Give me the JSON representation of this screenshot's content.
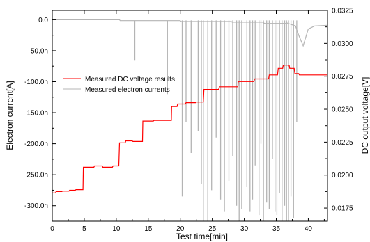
{
  "chart_data": {
    "type": "line",
    "xlabel": "Test time[min]",
    "ylabel_left": "Electron current[A]",
    "ylabel_right": "DC output voltage[V]",
    "xlim": [
      0,
      43
    ],
    "ylim_left": [
      -3.25e-07,
      1.5e-08
    ],
    "ylim_right": [
      0.0165,
      0.0325
    ],
    "x_ticks": [
      0,
      5,
      10,
      15,
      20,
      25,
      30,
      35,
      40
    ],
    "x_tick_labels": [
      "0",
      "5",
      "10",
      "15",
      "20",
      "25",
      "30",
      "35",
      "40"
    ],
    "y_left_ticks": [
      0,
      -5e-08,
      -1e-07,
      -1.5e-07,
      -2e-07,
      -2.5e-07,
      -3e-07
    ],
    "y_left_tick_labels": [
      "0.0",
      "-50.0n",
      "-100.0n",
      "-150.0n",
      "-200.0n",
      "-250.0n",
      "-300.0n"
    ],
    "y_right_ticks": [
      0.0175,
      0.02,
      0.0225,
      0.025,
      0.0275,
      0.03,
      0.0325
    ],
    "y_right_tick_labels": [
      "0.0175",
      "0.0200",
      "0.0225",
      "0.0250",
      "0.0275",
      "0.0300",
      "0.0325"
    ],
    "legend": {
      "placement": "upper-left",
      "entries": [
        {
          "label": "Measured DC voltage results",
          "color": "#ff0000"
        },
        {
          "label": "Measured electron currents",
          "color": "#b4b4b4"
        }
      ]
    },
    "series": [
      {
        "name": "Measured DC voltage results",
        "color": "#ff0000",
        "axis": "right",
        "x": [
          0,
          0.5,
          0.6,
          1.5,
          1.6,
          2.6,
          2.7,
          3.6,
          3.7,
          4.8,
          4.85,
          6.5,
          6.6,
          7.8,
          7.9,
          9.4,
          9.5,
          10.4,
          10.5,
          11.4,
          11.5,
          12.5,
          12.6,
          14.1,
          14.15,
          15.8,
          15.9,
          18.6,
          18.65,
          19.5,
          19.6,
          20.8,
          20.9,
          22.4,
          22.5,
          23.6,
          23.7,
          26.0,
          26.1,
          29.0,
          29.05,
          31.5,
          31.6,
          33.8,
          33.9,
          35.2,
          35.3,
          36.0,
          36.1,
          37.0,
          37.1,
          37.8,
          37.9,
          38.5,
          38.6,
          43.0
        ],
        "y": [
          0.01865,
          0.01865,
          0.01875,
          0.01875,
          0.01878,
          0.01878,
          0.01885,
          0.01885,
          0.0189,
          0.0189,
          0.0206,
          0.0206,
          0.0207,
          0.0207,
          0.0206,
          0.0206,
          0.0207,
          0.0207,
          0.02245,
          0.02245,
          0.0226,
          0.0226,
          0.02255,
          0.02255,
          0.0241,
          0.0241,
          0.02415,
          0.02415,
          0.0252,
          0.0252,
          0.0254,
          0.0254,
          0.0255,
          0.0255,
          0.02555,
          0.02555,
          0.0265,
          0.0265,
          0.0267,
          0.0267,
          0.0271,
          0.0271,
          0.0273,
          0.0273,
          0.0276,
          0.0276,
          0.0281,
          0.0281,
          0.02835,
          0.02835,
          0.0281,
          0.0281,
          0.0277,
          0.0277,
          0.0276,
          0.0276
        ]
      },
      {
        "name": "Measured electron currents",
        "color": "#b4b4b4",
        "axis": "left",
        "baseline_x": [
          0,
          10.5,
          10.6,
          20.0,
          20.1,
          28.0,
          28.1,
          33.0,
          33.1,
          36.5,
          36.6,
          38.0,
          38.5,
          39.2,
          40.0,
          41.0,
          43.0
        ],
        "baseline_y": [
          0,
          0,
          -1.5e-09,
          -1.5e-09,
          -3e-09,
          -3e-09,
          -4e-09,
          -4e-09,
          -6e-09,
          -6e-09,
          -5e-09,
          -1e-08,
          -2.5e-08,
          -4.2e-08,
          -1.5e-08,
          -1e-08,
          -9e-09
        ],
        "spikes_x": [
          12.9,
          18.0,
          20.3,
          20.9,
          21.7,
          22.8,
          23.3,
          23.6,
          24.3,
          24.9,
          25.6,
          26.3,
          26.9,
          27.6,
          28.2,
          28.8,
          29.2,
          29.6,
          30.4,
          30.9,
          31.3,
          31.7,
          32.3,
          32.6,
          33.0,
          33.5,
          33.9,
          34.4,
          34.8,
          35.1,
          35.5,
          35.9,
          36.3,
          36.6,
          36.9,
          37.3,
          37.7,
          38.2
        ],
        "spikes_y": [
          -6.5e-08,
          -1.2e-07,
          -2.85e-07,
          -1.65e-07,
          -2.15e-07,
          -1.8e-07,
          -2.65e-07,
          -3.25e-07,
          -3.25e-07,
          -2.75e-07,
          -1.9e-07,
          -2.9e-07,
          -3.1e-07,
          -2.6e-07,
          -2.2e-07,
          -3e-07,
          -3.25e-07,
          -3.05e-07,
          -2.7e-07,
          -3.1e-07,
          -2.9e-07,
          -2.35e-07,
          -3.15e-07,
          -2e-07,
          -3.25e-07,
          -2.95e-07,
          -3.05e-07,
          -2.25e-07,
          -3.1e-07,
          -3.15e-07,
          -2.8e-07,
          -3.25e-07,
          -3e-07,
          -3.25e-07,
          -3.25e-07,
          -2.85e-07,
          -3.2e-07,
          -1.65e-07
        ]
      }
    ]
  }
}
